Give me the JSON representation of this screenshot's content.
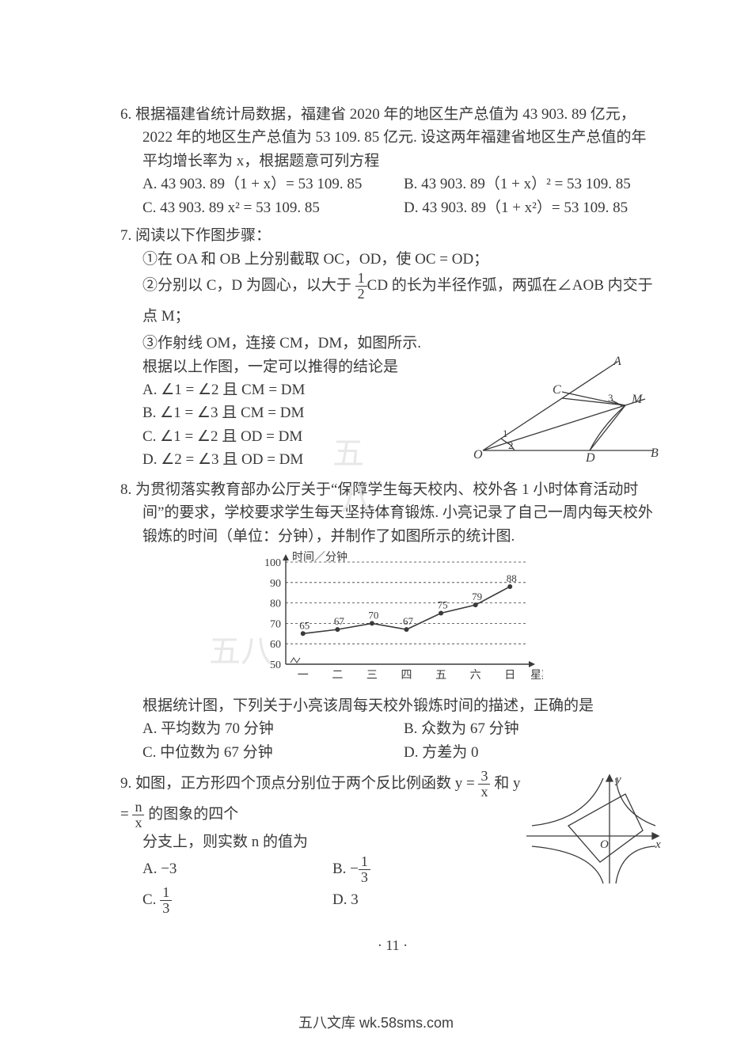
{
  "q6": {
    "num": "6.",
    "text1": "根据福建省统计局数据，福建省 2020 年的地区生产总值为 43 903. 89 亿元，",
    "text2": "2022 年的地区生产总值为 53 109. 85 亿元. 设这两年福建省地区生产总值的年",
    "text3": "平均增长率为 x，根据题意可列方程",
    "A": "A. 43 903. 89（1 + x）= 53 109. 85",
    "B": "B. 43 903. 89（1 + x）² = 53 109. 85",
    "C": "C. 43 903. 89 x² = 53 109. 85",
    "D": "D. 43 903. 89（1 + x²）= 53 109. 85"
  },
  "q7": {
    "num": "7.",
    "head": "阅读以下作图步骤：",
    "s1a": "①在 OA 和 OB 上分别截取 OC，OD，使 OC = OD；",
    "s2a": "②分别以 C，D 为圆心，以大于 ",
    "s2b": "CD 的长为半径作弧，两弧在∠AOB 内交于点 M；",
    "s3": "③作射线 OM，连接 CM，DM，如图所示.",
    "concl": "根据以上作图，一定可以推得的结论是",
    "A": "A. ∠1 = ∠2 且 CM = DM",
    "B": "B. ∠1 = ∠3 且 CM = DM",
    "C": "C. ∠1 = ∠2 且 OD = DM",
    "D": "D. ∠2 = ∠3 且 OD = DM",
    "diagram": {
      "labels": {
        "O": "O",
        "A": "A",
        "B": "B",
        "C": "C",
        "D": "D",
        "M": "M",
        "1": "1",
        "2": "2",
        "3": "3"
      },
      "stroke": "#3a3a3a",
      "stroke_width": 1.3
    }
  },
  "q8": {
    "num": "8.",
    "text1": "为贯彻落实教育部办公厅关于“保障学生每天校内、校外各 1 小时体育活动时",
    "text2": "间”的要求，学校要求学生每天坚持体育锻炼. 小亮记录了自己一周内每天校外",
    "text3": "锻炼的时间（单位：分钟），并制作了如图所示的统计图.",
    "chart": {
      "type": "line",
      "y_label": "时间／分钟",
      "x_label": "星期",
      "x_categories": [
        "一",
        "二",
        "三",
        "四",
        "五",
        "六",
        "日"
      ],
      "values": [
        65,
        67,
        70,
        67,
        75,
        79,
        88
      ],
      "point_labels": [
        "65",
        "67",
        "70",
        "67",
        "75",
        "79",
        "88"
      ],
      "ylim": [
        50,
        100
      ],
      "y_ticks": [
        50,
        60,
        70,
        80,
        90,
        100
      ],
      "y_tick_labels": [
        "50",
        "60",
        "70",
        "80",
        "90",
        "100"
      ],
      "axis_color": "#3a3a3a",
      "grid_dash": "3,3",
      "line_color": "#3a3a3a",
      "marker": "circle",
      "marker_fill": "#3a3a3a",
      "marker_r": 3,
      "font_size": 14
    },
    "q": "根据统计图，下列关于小亮该周每天校外锻炼时间的描述，正确的是",
    "A": "A. 平均数为 70 分钟",
    "B": "B. 众数为 67 分钟",
    "C": "C. 中位数为 67 分钟",
    "D": "D. 方差为 0"
  },
  "q9": {
    "num": "9.",
    "text_a": "如图，正方形四个顶点分别位于两个反比例函数 y = ",
    "text_b": " 和 y = ",
    "text_c": " 的图象的四个",
    "text2": "分支上，则实数 n 的值为",
    "A": "A. −3",
    "B_pre": "B. −",
    "C_pre": "C. ",
    "D": "D. 3",
    "diagram": {
      "labels": {
        "O": "O",
        "x": "x",
        "y": "y"
      },
      "stroke": "#3a3a3a",
      "stroke_width": 1.3
    }
  },
  "page_num": "· 11 ·",
  "footer": "五八文库 wk.58sms.com",
  "watermark": "五"
}
